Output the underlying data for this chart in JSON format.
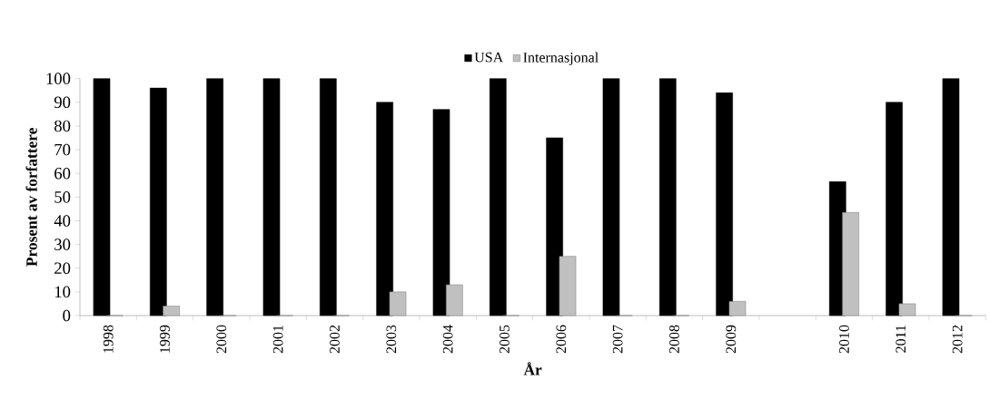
{
  "chart_data": {
    "type": "bar",
    "xlabel": "År",
    "ylabel": "Prosent av forfattere",
    "categories": [
      "1998",
      "1999",
      "2000",
      "2001",
      "2002",
      "2003",
      "2004",
      "2005",
      "2006",
      "2007",
      "2008",
      "2009",
      null,
      "2010",
      "2011",
      "2012"
    ],
    "series": [
      {
        "name": "USA",
        "color": "#000000",
        "values": [
          100,
          96,
          100,
          100,
          100,
          90,
          87,
          100,
          75,
          100,
          100,
          94,
          null,
          56.5,
          90,
          100
        ]
      },
      {
        "name": "Internasjonal",
        "color": "#c0c0c0",
        "values": [
          0,
          4,
          0,
          0,
          0,
          10,
          13,
          0,
          25,
          0,
          0,
          6,
          null,
          43.5,
          5,
          0
        ]
      }
    ],
    "ylim": [
      0,
      100
    ],
    "yticks": [
      0,
      10,
      20,
      30,
      40,
      50,
      60,
      70,
      80,
      90,
      100
    ],
    "legend": "top"
  }
}
